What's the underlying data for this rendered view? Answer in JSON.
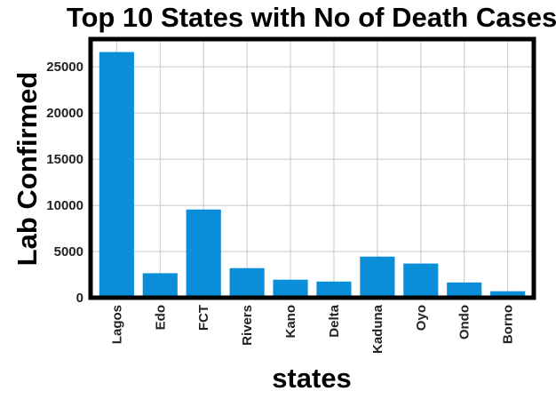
{
  "chart_data": {
    "type": "bar",
    "title": "Top 10 States with No of Death Cases",
    "xlabel": "states",
    "ylabel": "Lab Confirmed",
    "categories": [
      "Lagos",
      "Edo",
      "FCT",
      "Rivers",
      "Kano",
      "Delta",
      "Kaduna",
      "Oyo",
      "Ondo",
      "Borno"
    ],
    "values": [
      26600,
      2650,
      9550,
      3200,
      1950,
      1750,
      4450,
      3700,
      1650,
      700
    ],
    "ylim": [
      0,
      28000
    ],
    "yticks": [
      0,
      5000,
      10000,
      15000,
      20000,
      25000
    ],
    "grid": true,
    "legend": "none",
    "bar_color": "#0a8ed8"
  }
}
